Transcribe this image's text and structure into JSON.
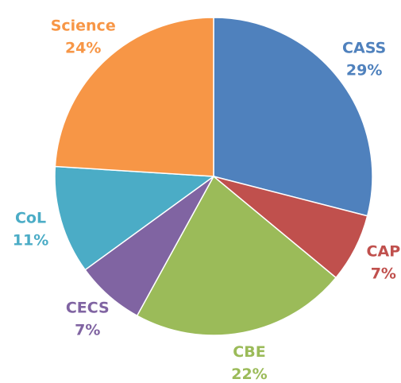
{
  "chart_data": {
    "type": "pie",
    "categories": [
      "CASS",
      "CAP",
      "CBE",
      "CECS",
      "CoL",
      "Science"
    ],
    "values": [
      29,
      7,
      22,
      7,
      11,
      24
    ],
    "value_labels": [
      "29%",
      "7%",
      "22%",
      "7%",
      "11%",
      "24%"
    ],
    "colors": [
      "#4f81bd",
      "#c0504d",
      "#9bbb59",
      "#8064a2",
      "#4bacc6",
      "#f79646"
    ]
  }
}
